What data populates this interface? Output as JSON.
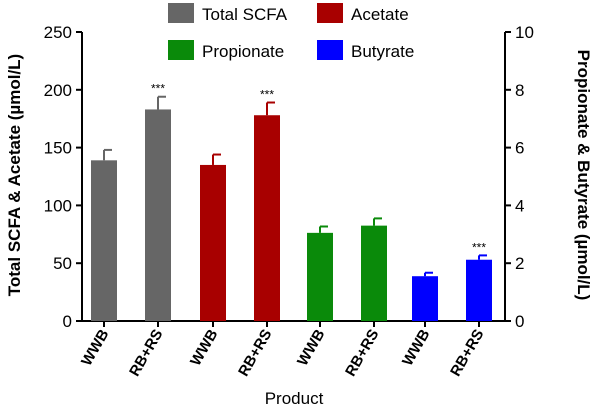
{
  "chart_data": {
    "type": "bar",
    "xlabel": "Product",
    "ylabel_left": "Total SCFA & Acetate (µmol/L)",
    "ylabel_right": "Propionate & Butyrate (µmol/L)",
    "ylim_left": [
      0,
      250
    ],
    "ylim_right": [
      0,
      10
    ],
    "left_ticks": [
      "0",
      "50",
      "100",
      "150",
      "200",
      "250"
    ],
    "right_ticks": [
      "0",
      "2",
      "4",
      "6",
      "8",
      "10"
    ],
    "legend_position": "top",
    "significance_label": "***",
    "groups": [
      {
        "name": "Total SCFA",
        "color": "#666666",
        "axis": "left",
        "categories": [
          "WWB",
          "RB+RS"
        ],
        "values": [
          139,
          183
        ],
        "errors": [
          9,
          11
        ],
        "significant": [
          false,
          true
        ]
      },
      {
        "name": "Acetate",
        "color": "#a80000",
        "axis": "left",
        "categories": [
          "WWB",
          "RB+RS"
        ],
        "values": [
          135,
          178
        ],
        "errors": [
          9,
          11
        ],
        "significant": [
          false,
          true
        ]
      },
      {
        "name": "Propionate",
        "color": "#0a8a0a",
        "axis": "right",
        "categories": [
          "WWB",
          "RB+RS"
        ],
        "values": [
          3.05,
          3.3
        ],
        "errors": [
          0.22,
          0.25
        ],
        "significant": [
          false,
          false
        ]
      },
      {
        "name": "Butyrate",
        "color": "#0000ff",
        "axis": "right",
        "categories": [
          "WWB",
          "RB+RS"
        ],
        "values": [
          1.55,
          2.12
        ],
        "errors": [
          0.12,
          0.15
        ],
        "significant": [
          false,
          true
        ]
      }
    ]
  }
}
